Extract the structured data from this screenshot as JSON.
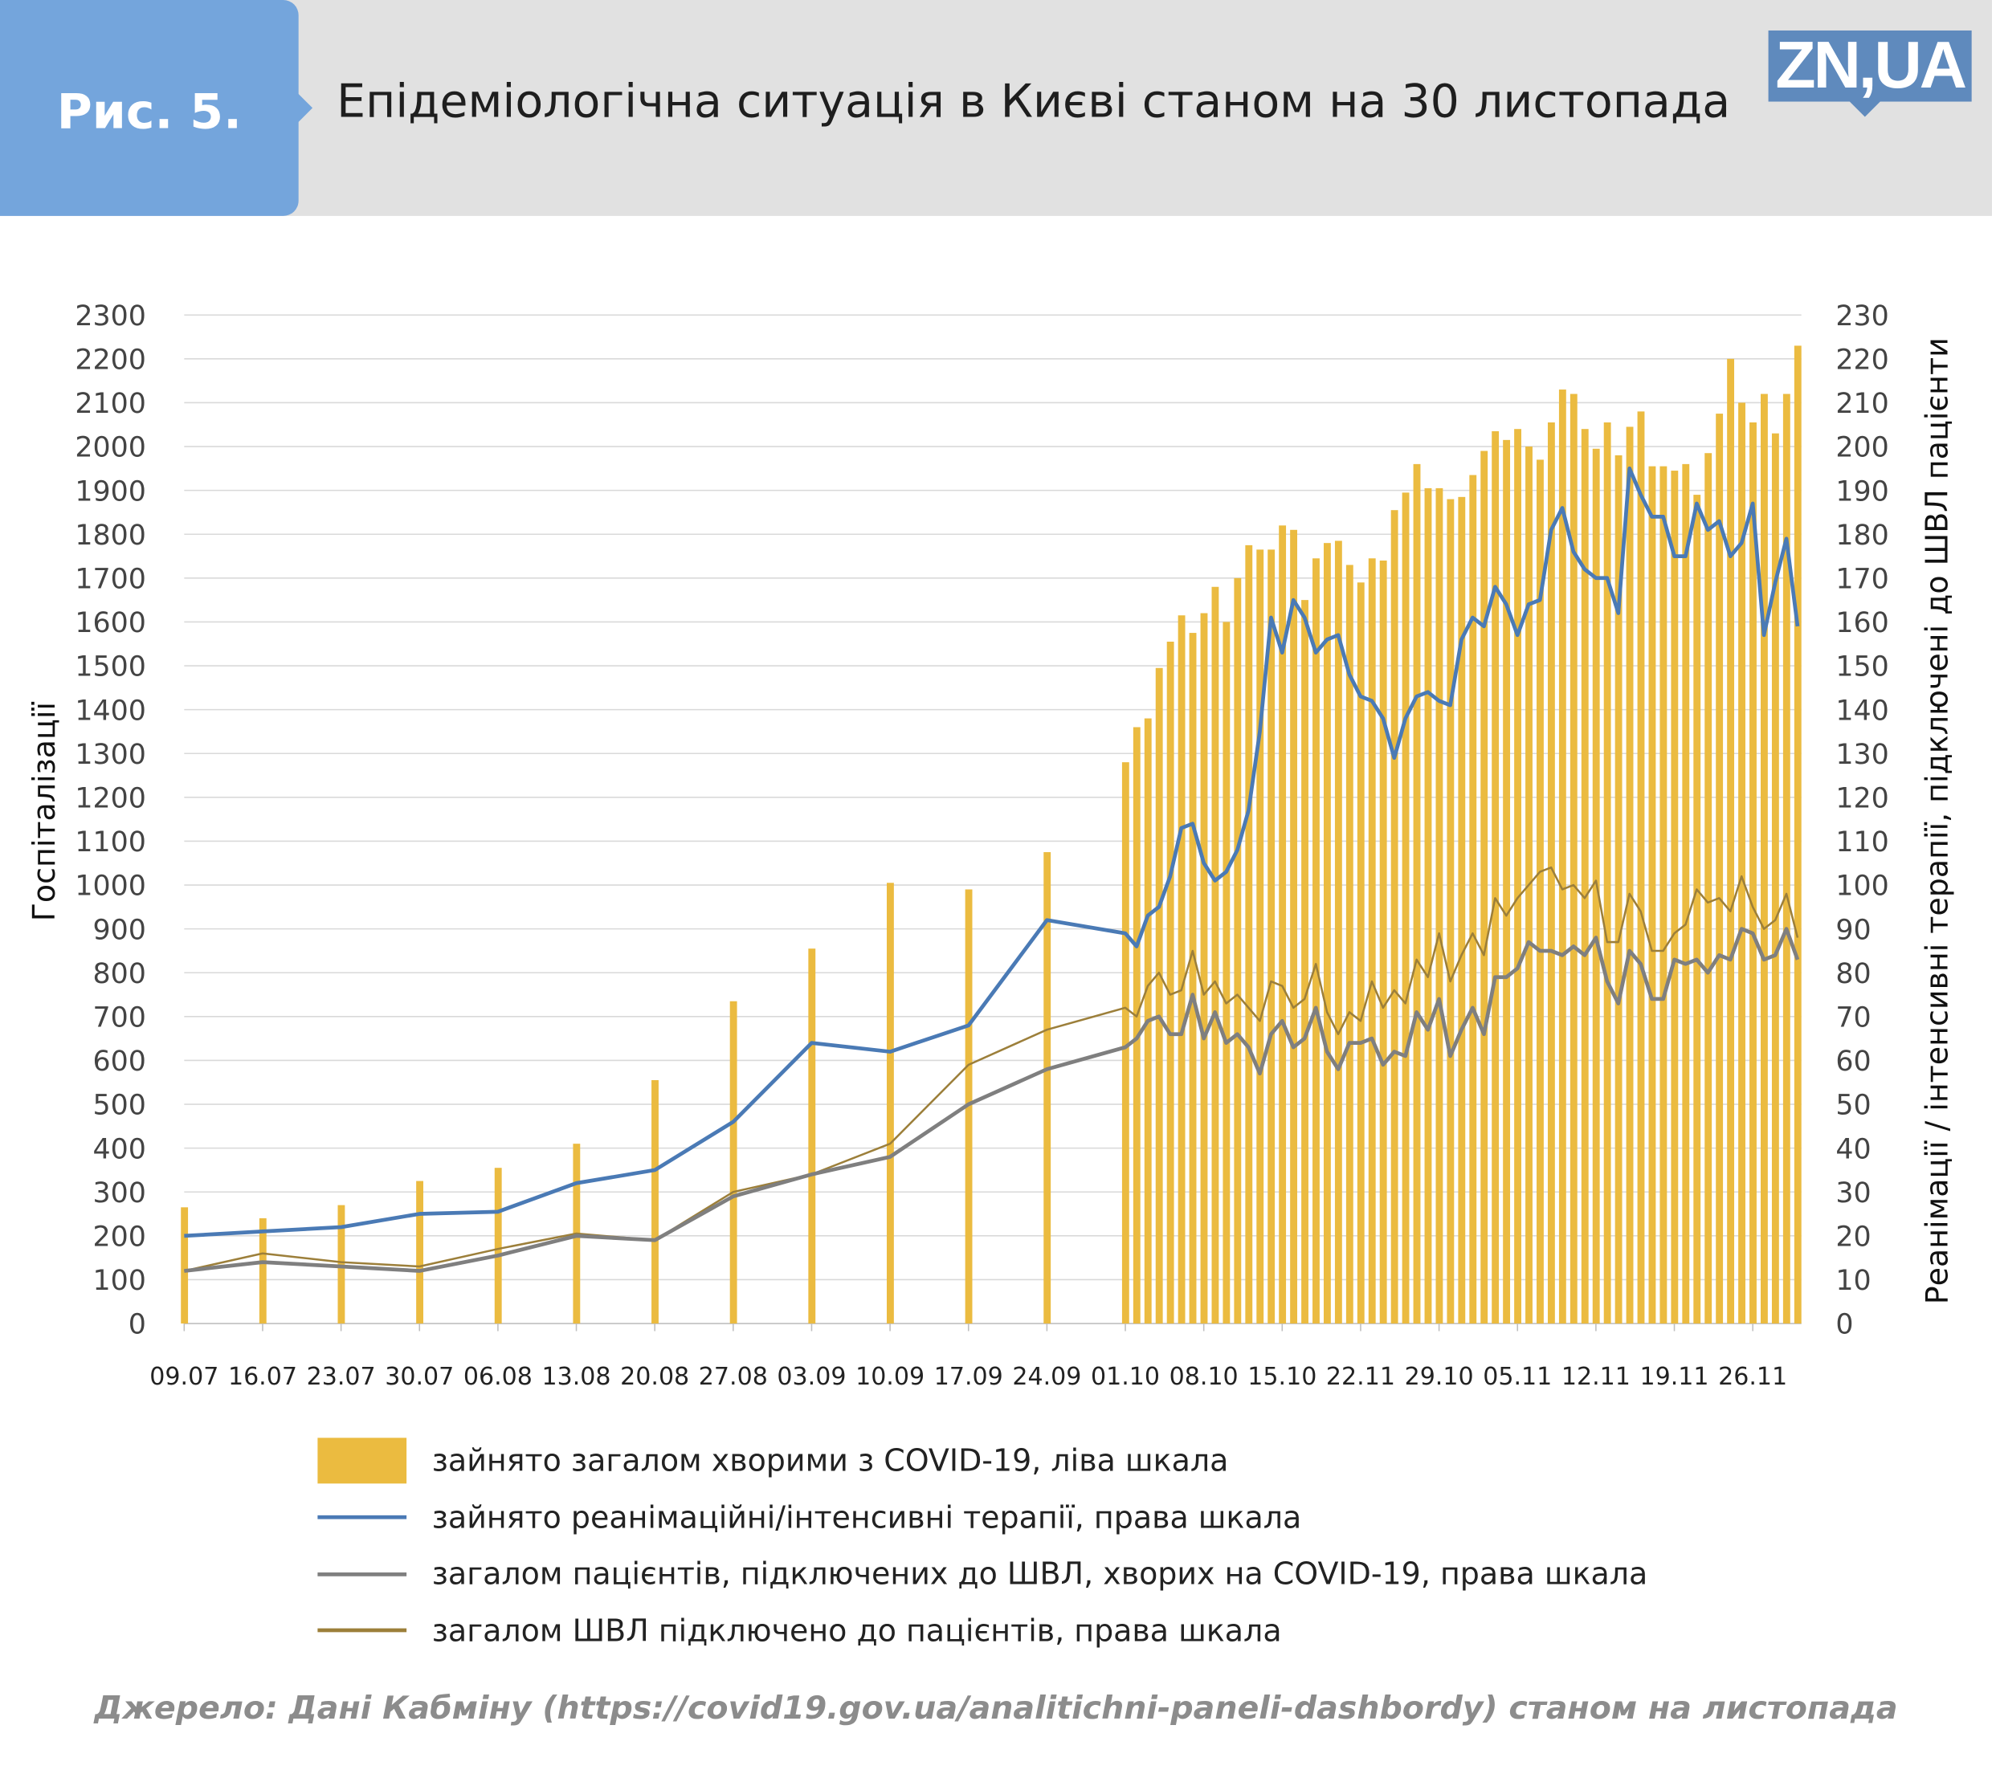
{
  "header": {
    "figure_label": "Рис. 5.",
    "title": "Епідеміологічна ситуація в Києві станом на 30 листопада",
    "logo_text": "ZN,UA"
  },
  "colors": {
    "bars": "#ebbb40",
    "icu": "#4a7ab5",
    "ventilated_covid": "#7f7f7f",
    "ventilators_total": "#9c7f3a",
    "header_blue": "#74a5dc"
  },
  "chart_data": {
    "type": "bar+line",
    "title": "Епідеміологічна ситуація в Києві станом на 30 листопада",
    "ylabel": "Госпіталізації",
    "y2label": "Реанімації / інтенсивні терапії, підключені до ШВЛ пацієнти",
    "ylim": [
      0,
      2300
    ],
    "y2lim": [
      0,
      230
    ],
    "grid": true,
    "legend_position": "bottom",
    "left_ticks": [
      "0",
      "100",
      "200",
      "300",
      "400",
      "500",
      "600",
      "700",
      "800",
      "900",
      "1000",
      "1100",
      "1200",
      "1300",
      "1400",
      "1500",
      "1600",
      "1700",
      "1800",
      "1900",
      "2000",
      "2100",
      "2200",
      "2300"
    ],
    "right_ticks": [
      "0",
      "10",
      "20",
      "30",
      "40",
      "50",
      "60",
      "70",
      "80",
      "90",
      "100",
      "110",
      "120",
      "130",
      "140",
      "150",
      "160",
      "170",
      "180",
      "190",
      "200",
      "210",
      "220",
      "230"
    ],
    "x_tick_labels": [
      "09.07",
      "16.07",
      "23.07",
      "30.07",
      "06.08",
      "13.08",
      "20.08",
      "27.08",
      "03.09",
      "10.09",
      "17.09",
      "24.09",
      "01.10",
      "08.10",
      "15.10",
      "22.11",
      "29.10",
      "05.11",
      "12.11",
      "19.11",
      "26.11"
    ],
    "weekly_dates": [
      "09.07",
      "16.07",
      "23.07",
      "30.07",
      "06.08",
      "13.08",
      "20.08",
      "27.08",
      "03.09",
      "10.09",
      "17.09",
      "24.09"
    ],
    "daily_range": [
      "01.10",
      "30.11"
    ],
    "series": [
      {
        "name": "зайнято загалом хворими з COVID-19, ліва шкала",
        "type": "bar",
        "axis": "left",
        "weekly": [
          265,
          240,
          270,
          325,
          355,
          410,
          555,
          735,
          855,
          1005,
          990,
          1075
        ],
        "daily": [
          1280,
          1360,
          1380,
          1495,
          1555,
          1615,
          1575,
          1620,
          1680,
          1600,
          1700,
          1775,
          1765,
          1765,
          1820,
          1810,
          1650,
          1745,
          1780,
          1785,
          1730,
          1690,
          1745,
          1740,
          1855,
          1895,
          1960,
          1905,
          1905,
          1880,
          1885,
          1935,
          1990,
          2035,
          2015,
          2040,
          2000,
          1970,
          2055,
          2130,
          2120,
          2040,
          1995,
          2055,
          1980,
          2045,
          2080,
          1955,
          1955,
          1945,
          1960,
          1890,
          1985,
          2075,
          2200,
          2100,
          2055,
          2120,
          2030,
          2120,
          2230
        ]
      },
      {
        "name": "зайнято реанімаційні/інтенсивні терапії, права шкала",
        "type": "line",
        "axis": "right",
        "weekly": [
          20,
          21,
          22,
          25,
          25.5,
          32,
          35,
          46,
          64,
          62,
          68,
          92
        ],
        "daily": [
          89,
          86,
          93,
          95,
          102,
          113,
          114,
          105,
          101,
          103,
          108,
          117,
          135,
          161,
          153,
          165,
          161,
          153,
          156,
          157,
          148,
          143,
          142,
          138,
          129,
          138,
          143,
          144,
          142,
          141,
          156,
          161,
          159,
          168,
          164,
          157,
          164,
          165,
          181,
          186,
          176,
          172,
          170,
          170,
          162,
          195,
          189,
          184,
          184,
          175,
          175,
          187,
          181,
          183,
          175,
          178,
          187,
          157,
          169,
          179,
          159
        ]
      },
      {
        "name": "загалом пацієнтів, підключених до ШВЛ, хворих на COVID-19, права шкала",
        "type": "line",
        "axis": "right",
        "weekly": [
          12,
          14,
          13,
          12,
          15.5,
          20,
          19,
          29,
          34,
          38,
          50,
          58
        ],
        "daily": [
          63,
          65,
          69,
          70,
          66,
          66,
          75,
          65,
          71,
          64,
          66,
          63,
          57,
          66,
          69,
          63,
          65,
          72,
          62,
          58,
          64,
          64,
          65,
          59,
          62,
          61,
          71,
          67,
          74,
          61,
          67,
          72,
          66,
          79,
          79,
          81,
          87,
          85,
          85,
          84,
          86,
          84,
          88,
          78,
          73,
          85,
          82,
          74,
          74,
          83,
          82,
          83,
          80,
          84,
          83,
          90,
          89,
          83,
          84,
          90,
          83
        ]
      },
      {
        "name": "загалом ШВЛ підключено до пацієнтів, права шкала",
        "type": "line",
        "axis": "right",
        "weekly": [
          12,
          16,
          14,
          13,
          17,
          20.5,
          19,
          30,
          34,
          41,
          59,
          67
        ],
        "daily": [
          72,
          70,
          77,
          80,
          75,
          76,
          85,
          75,
          78,
          73,
          75,
          72,
          69,
          78,
          77,
          72,
          74,
          82,
          71,
          66,
          71,
          69,
          78,
          72,
          76,
          73,
          83,
          79,
          89,
          78,
          84,
          89,
          84,
          97,
          93,
          97,
          100,
          103,
          104,
          99,
          100,
          97,
          101,
          87,
          87,
          98,
          94,
          85,
          85,
          89,
          91,
          99,
          96,
          97,
          94,
          102,
          95,
          90,
          92,
          98,
          88
        ]
      }
    ]
  },
  "source": "Джерело: Дані Кабміну (https://covid19.gov.ua/analitichni-paneli-dashbordy) станом на листопада"
}
